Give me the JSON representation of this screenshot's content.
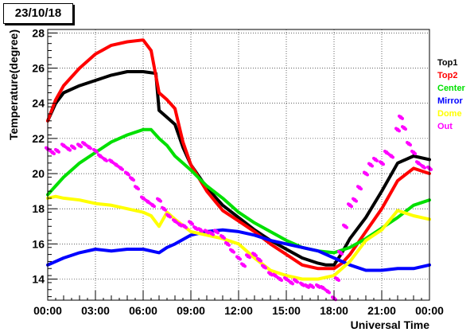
{
  "date_label": "23/10/18",
  "chart_data": {
    "type": "scatter",
    "title": "23/10/18",
    "xlabel": "Universal Time",
    "ylabel": "Temperature(degree)",
    "xlim": [
      0,
      24
    ],
    "ylim": [
      12.8,
      28.2
    ],
    "grid": true,
    "legend_position": "right",
    "x_ticks": [
      {
        "value": 0,
        "label": "00:00"
      },
      {
        "value": 3,
        "label": "03:00"
      },
      {
        "value": 6,
        "label": "06:00"
      },
      {
        "value": 9,
        "label": "09:00"
      },
      {
        "value": 12,
        "label": "12:00"
      },
      {
        "value": 15,
        "label": "15:00"
      },
      {
        "value": 18,
        "label": "18:00"
      },
      {
        "value": 21,
        "label": "21:00"
      },
      {
        "value": 24,
        "label": "00:00"
      }
    ],
    "y_ticks": [
      {
        "value": 14,
        "label": "14"
      },
      {
        "value": 16,
        "label": "16"
      },
      {
        "value": 18,
        "label": "18"
      },
      {
        "value": 20,
        "label": "20"
      },
      {
        "value": 22,
        "label": "22"
      },
      {
        "value": 24,
        "label": "24"
      },
      {
        "value": 26,
        "label": "26"
      },
      {
        "value": 28,
        "label": "28"
      }
    ],
    "series": [
      {
        "name": "Top1",
        "color": "#000000",
        "style": "line",
        "x": [
          0,
          0.5,
          1,
          2,
          3,
          4,
          5,
          6,
          6.8,
          7.0,
          7.5,
          8.0,
          8.5,
          9,
          10,
          11,
          12,
          13,
          14,
          15,
          16,
          17,
          17.5,
          18,
          18.5,
          19,
          20,
          21,
          22,
          23,
          24
        ],
        "y": [
          23.0,
          24.0,
          24.6,
          25.0,
          25.3,
          25.6,
          25.8,
          25.8,
          25.7,
          23.6,
          23.2,
          22.8,
          21.5,
          20.5,
          19.2,
          18.2,
          17.5,
          16.8,
          16.2,
          15.7,
          15.2,
          14.9,
          14.8,
          14.8,
          15.5,
          16.3,
          17.5,
          19.0,
          20.6,
          21.0,
          20.8
        ]
      },
      {
        "name": "Top2",
        "color": "#ff0000",
        "style": "line",
        "x": [
          0,
          0.5,
          1,
          2,
          3,
          4,
          5,
          6,
          6.5,
          7.0,
          7.5,
          8.0,
          8.5,
          9,
          10,
          11,
          12,
          13,
          14,
          15,
          16,
          17,
          18,
          18.5,
          19,
          20,
          21,
          22,
          23,
          24
        ],
        "y": [
          23.0,
          24.2,
          25.0,
          26.0,
          26.8,
          27.3,
          27.5,
          27.6,
          27.0,
          24.6,
          24.2,
          23.7,
          21.8,
          20.5,
          19.0,
          17.9,
          17.3,
          16.7,
          16.0,
          15.4,
          14.8,
          14.6,
          14.6,
          14.9,
          15.4,
          16.7,
          18.0,
          19.6,
          20.3,
          20.0
        ]
      },
      {
        "name": "Center",
        "color": "#00e000",
        "style": "line",
        "x": [
          0,
          1,
          2,
          3,
          4,
          5,
          6,
          6.5,
          7,
          7.5,
          8,
          9,
          10,
          11,
          12,
          13,
          14,
          15,
          16,
          17,
          18,
          19,
          20,
          21,
          22,
          23,
          24
        ],
        "y": [
          18.8,
          19.8,
          20.6,
          21.2,
          21.8,
          22.2,
          22.5,
          22.5,
          22.0,
          21.6,
          21.0,
          20.2,
          19.3,
          18.6,
          17.8,
          17.2,
          16.7,
          16.2,
          15.8,
          15.6,
          15.5,
          15.8,
          16.3,
          16.9,
          17.5,
          18.2,
          18.5
        ]
      },
      {
        "name": "Mirror",
        "color": "#0000ff",
        "style": "line",
        "x": [
          0,
          1,
          2,
          3,
          4,
          5,
          6,
          7,
          7.5,
          8,
          9,
          10,
          11,
          12,
          13,
          14,
          15,
          16,
          17,
          18,
          19,
          20,
          21,
          22,
          23,
          24
        ],
        "y": [
          14.8,
          15.2,
          15.5,
          15.7,
          15.6,
          15.7,
          15.7,
          15.5,
          15.8,
          16.0,
          16.5,
          16.7,
          16.8,
          16.7,
          16.5,
          16.2,
          16.0,
          15.8,
          15.6,
          15.2,
          14.8,
          14.5,
          14.5,
          14.6,
          14.6,
          14.8
        ]
      },
      {
        "name": "Dome",
        "color": "#ffff00",
        "style": "line",
        "x": [
          0,
          0.5,
          1,
          2,
          3,
          4,
          5,
          6,
          6.5,
          7,
          7.5,
          8,
          9,
          10,
          11,
          12,
          13,
          14,
          15,
          16,
          17,
          18,
          19,
          20,
          21,
          22,
          23,
          24
        ],
        "y": [
          18.6,
          18.7,
          18.6,
          18.5,
          18.3,
          18.2,
          18.0,
          17.8,
          17.6,
          17.0,
          17.8,
          17.4,
          16.7,
          16.5,
          16.3,
          16.0,
          15.2,
          14.5,
          14.2,
          14.0,
          14.0,
          14.2,
          15.0,
          16.2,
          16.8,
          17.9,
          17.6,
          17.4
        ]
      },
      {
        "name": "Out",
        "color": "#ff00ff",
        "style": "points",
        "x": [
          0.0,
          0.3,
          0.6,
          1.0,
          1.3,
          1.6,
          2.0,
          2.3,
          2.6,
          3.0,
          3.3,
          3.6,
          4.0,
          4.3,
          4.6,
          5.0,
          5.3,
          5.6,
          6.0,
          6.3,
          6.6,
          7.0,
          7.3,
          7.6,
          8.0,
          8.3,
          8.6,
          9.0,
          9.3,
          9.6,
          10.0,
          10.3,
          10.6,
          11.0,
          11.3,
          11.6,
          12.0,
          12.3,
          12.6,
          13.0,
          13.3,
          13.6,
          14.0,
          14.3,
          14.6,
          15.0,
          15.3,
          15.6,
          16.0,
          16.3,
          16.6,
          17.0,
          17.3,
          17.6,
          18.0,
          18.2,
          18.4,
          18.7,
          19.0,
          19.3,
          19.6,
          20.0,
          20.3,
          20.6,
          21.0,
          21.3,
          21.6,
          22.0,
          22.2,
          22.4,
          22.7,
          23.0,
          23.3,
          23.6,
          24.0
        ],
        "y": [
          21.4,
          21.2,
          21.3,
          21.6,
          21.4,
          21.5,
          21.6,
          21.7,
          21.5,
          21.3,
          21.0,
          20.8,
          20.7,
          20.5,
          20.3,
          20.0,
          19.7,
          19.2,
          18.6,
          18.4,
          18.2,
          18.5,
          18.0,
          17.6,
          17.3,
          17.1,
          17.0,
          17.2,
          16.9,
          16.8,
          16.7,
          16.6,
          16.7,
          16.4,
          16.0,
          15.6,
          15.2,
          14.8,
          15.3,
          15.4,
          15.1,
          14.7,
          14.3,
          14.2,
          14.0,
          14.0,
          13.8,
          13.9,
          13.7,
          13.6,
          13.6,
          13.6,
          13.5,
          13.3,
          12.9,
          14.0,
          15.5,
          17.0,
          18.2,
          18.5,
          19.2,
          20.0,
          20.5,
          20.8,
          20.6,
          21.2,
          21.0,
          22.5,
          23.2,
          22.6,
          21.7,
          21.2,
          20.6,
          20.4,
          20.3
        ]
      }
    ]
  }
}
